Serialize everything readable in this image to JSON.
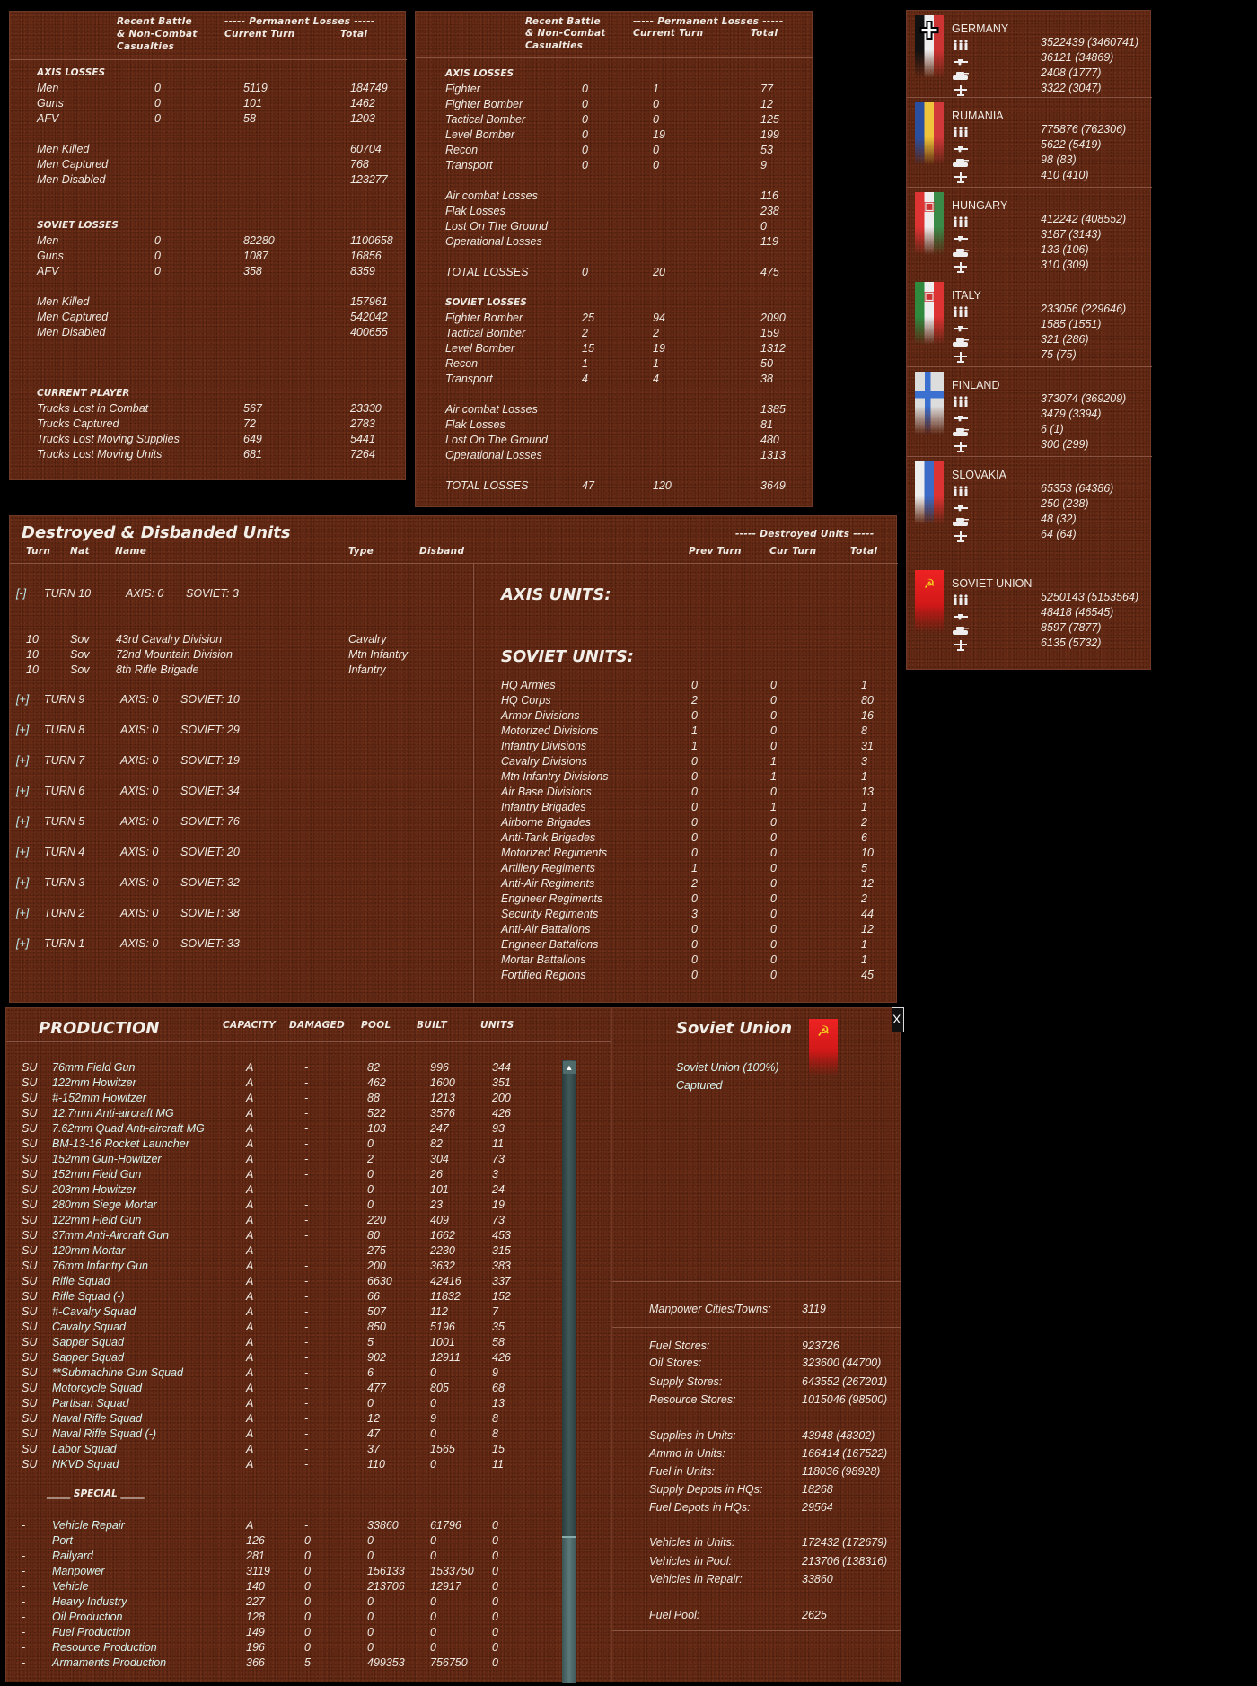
{
  "ground_losses": {
    "headers": {
      "recent": [
        "Recent Battle",
        "& Non-Combat",
        "Casualties"
      ],
      "permanent": "----- Permanent Losses -----",
      "current": "Current Turn",
      "total": "Total"
    },
    "sections": [
      {
        "title": "AXIS LOSSES",
        "groups": [
          [
            [
              "Men",
              "0",
              "5119",
              "184749"
            ],
            [
              "Guns",
              "0",
              "101",
              "1462"
            ],
            [
              "AFV",
              "0",
              "58",
              "1203"
            ]
          ],
          [
            [
              "Men Killed",
              "",
              "",
              "60704"
            ],
            [
              "Men Captured",
              "",
              "",
              "768"
            ],
            [
              "Men Disabled",
              "",
              "",
              "123277"
            ]
          ]
        ]
      },
      {
        "title": "SOVIET LOSSES",
        "groups": [
          [
            [
              "Men",
              "0",
              "82280",
              "1100658"
            ],
            [
              "Guns",
              "0",
              "1087",
              "16856"
            ],
            [
              "AFV",
              "0",
              "358",
              "8359"
            ]
          ],
          [
            [
              "Men Killed",
              "",
              "",
              "157961"
            ],
            [
              "Men Captured",
              "",
              "",
              "542042"
            ],
            [
              "Men Disabled",
              "",
              "",
              "400655"
            ]
          ]
        ]
      },
      {
        "title": "CURRENT PLAYER",
        "groups": [
          [
            [
              "Trucks Lost in Combat",
              "",
              "567",
              "23330"
            ],
            [
              "Trucks Captured",
              "",
              "72",
              "2783"
            ],
            [
              "Trucks Lost Moving Supplies",
              "",
              "649",
              "5441"
            ],
            [
              "Trucks Lost Moving Units",
              "",
              "681",
              "7264"
            ]
          ]
        ]
      }
    ]
  },
  "air_losses": {
    "headers": {
      "recent": [
        "Recent Battle",
        "& Non-Combat",
        "Casualties"
      ],
      "permanent": "----- Permanent Losses -----",
      "current": "Current Turn",
      "total": "Total"
    },
    "sections": [
      {
        "title": "AXIS LOSSES",
        "groups": [
          [
            [
              "Fighter",
              "0",
              "1",
              "77"
            ],
            [
              "Fighter Bomber",
              "0",
              "0",
              "12"
            ],
            [
              "Tactical Bomber",
              "0",
              "0",
              "125"
            ],
            [
              "Level Bomber",
              "0",
              "19",
              "199"
            ],
            [
              "Recon",
              "0",
              "0",
              "53"
            ],
            [
              "Transport",
              "0",
              "0",
              "9"
            ]
          ],
          [
            [
              "Air combat Losses",
              "",
              "",
              "116"
            ],
            [
              "Flak Losses",
              "",
              "",
              "238"
            ],
            [
              "Lost On The Ground",
              "",
              "",
              "0"
            ],
            [
              "Operational Losses",
              "",
              "",
              "119"
            ]
          ],
          [
            [
              "TOTAL LOSSES",
              "0",
              "20",
              "475"
            ]
          ]
        ]
      },
      {
        "title": "SOVIET LOSSES",
        "groups": [
          [
            [
              "Fighter Bomber",
              "25",
              "94",
              "2090"
            ],
            [
              "Tactical Bomber",
              "2",
              "2",
              "159"
            ],
            [
              "Level Bomber",
              "15",
              "19",
              "1312"
            ],
            [
              "Recon",
              "1",
              "1",
              "50"
            ],
            [
              "Transport",
              "4",
              "4",
              "38"
            ]
          ],
          [
            [
              "Air combat Losses",
              "",
              "",
              "1385"
            ],
            [
              "Flak Losses",
              "",
              "",
              "81"
            ],
            [
              "Lost On The Ground",
              "",
              "",
              "480"
            ],
            [
              "Operational Losses",
              "",
              "",
              "1313"
            ]
          ],
          [
            [
              "TOTAL LOSSES",
              "47",
              "120",
              "3649"
            ]
          ]
        ]
      }
    ]
  },
  "nations": [
    {
      "name": "GERMANY",
      "flag": "germany",
      "values": [
        "3522439 (3460741)",
        "36121 (34869)",
        "2408 (1777)",
        "3322 (3047)"
      ]
    },
    {
      "name": "RUMANIA",
      "flag": "rumania",
      "values": [
        "775876 (762306)",
        "5622 (5419)",
        "98 (83)",
        "410 (410)"
      ]
    },
    {
      "name": "HUNGARY",
      "flag": "hungary",
      "values": [
        "412242 (408552)",
        "3187 (3143)",
        "133 (106)",
        "310 (309)"
      ]
    },
    {
      "name": "ITALY",
      "flag": "italy",
      "values": [
        "233056 (229646)",
        "1585 (1551)",
        "321 (286)",
        "75 (75)"
      ]
    },
    {
      "name": "FINLAND",
      "flag": "finland",
      "values": [
        "373074 (369209)",
        "3479 (3394)",
        "6 (1)",
        "300 (299)"
      ]
    },
    {
      "name": "SLOVAKIA",
      "flag": "slovakia",
      "values": [
        "65353 (64386)",
        "250 (238)",
        "48 (32)",
        "64 (64)"
      ]
    },
    {
      "name": "SOVIET UNION",
      "flag": "soviet",
      "values": [
        "5250143 (5153564)",
        "48418 (46545)",
        "8597 (7877)",
        "6135 (5732)"
      ]
    }
  ],
  "destroyed": {
    "title": "Destroyed & Disbanded Units",
    "headers": {
      "turn": "Turn",
      "nat": "Nat",
      "name": "Name",
      "type": "Type",
      "disband": "Disband",
      "destroyed_units": "----- Destroyed Units -----",
      "prev_turn": "Prev Turn",
      "cur_turn": "Cur Turn",
      "total": "Total"
    },
    "turns": [
      {
        "toggle": "[-]",
        "label": "TURN 10",
        "axis": "AXIS: 0",
        "soviet": "SOVIET: 3",
        "units": [
          [
            "10",
            "Sov",
            "43rd Cavalry Division",
            "Cavalry"
          ],
          [
            "10",
            "Sov",
            "72nd Mountain Division",
            "Mtn Infantry"
          ],
          [
            "10",
            "Sov",
            "8th Rifle Brigade",
            "Infantry"
          ]
        ]
      },
      {
        "toggle": "[+]",
        "label": "TURN 9",
        "axis": "AXIS: 0",
        "soviet": "SOVIET: 10"
      },
      {
        "toggle": "[+]",
        "label": "TURN 8",
        "axis": "AXIS: 0",
        "soviet": "SOVIET: 29"
      },
      {
        "toggle": "[+]",
        "label": "TURN 7",
        "axis": "AXIS: 0",
        "soviet": "SOVIET: 19"
      },
      {
        "toggle": "[+]",
        "label": "TURN 6",
        "axis": "AXIS: 0",
        "soviet": "SOVIET: 34"
      },
      {
        "toggle": "[+]",
        "label": "TURN 5",
        "axis": "AXIS: 0",
        "soviet": "SOVIET: 76"
      },
      {
        "toggle": "[+]",
        "label": "TURN 4",
        "axis": "AXIS: 0",
        "soviet": "SOVIET: 20"
      },
      {
        "toggle": "[+]",
        "label": "TURN 3",
        "axis": "AXIS: 0",
        "soviet": "SOVIET: 32"
      },
      {
        "toggle": "[+]",
        "label": "TURN 2",
        "axis": "AXIS: 0",
        "soviet": "SOVIET: 38"
      },
      {
        "toggle": "[+]",
        "label": "TURN 1",
        "axis": "AXIS: 0",
        "soviet": "SOVIET: 33"
      }
    ],
    "axis_units_title": "AXIS UNITS:",
    "soviet_units_title": "SOVIET UNITS:",
    "soviet_units": [
      [
        "HQ Armies",
        "0",
        "0",
        "1"
      ],
      [
        "HQ Corps",
        "2",
        "0",
        "80"
      ],
      [
        "Armor Divisions",
        "0",
        "0",
        "16"
      ],
      [
        "Motorized Divisions",
        "1",
        "0",
        "8"
      ],
      [
        "Infantry Divisions",
        "1",
        "0",
        "31"
      ],
      [
        "Cavalry Divisions",
        "0",
        "1",
        "3"
      ],
      [
        "Mtn Infantry Divisions",
        "0",
        "1",
        "1"
      ],
      [
        "Air Base Divisions",
        "0",
        "0",
        "13"
      ],
      [
        "Infantry Brigades",
        "0",
        "1",
        "1"
      ],
      [
        "Airborne Brigades",
        "0",
        "0",
        "2"
      ],
      [
        "Anti-Tank Brigades",
        "0",
        "0",
        "6"
      ],
      [
        "Motorized Regiments",
        "0",
        "0",
        "10"
      ],
      [
        "Artillery Regiments",
        "1",
        "0",
        "5"
      ],
      [
        "Anti-Air Regiments",
        "2",
        "0",
        "12"
      ],
      [
        "Engineer Regiments",
        "0",
        "0",
        "2"
      ],
      [
        "Security Regiments",
        "3",
        "0",
        "44"
      ],
      [
        "Anti-Air Battalions",
        "0",
        "0",
        "12"
      ],
      [
        "Engineer Battalions",
        "0",
        "0",
        "1"
      ],
      [
        "Mortar Battalions",
        "0",
        "0",
        "1"
      ],
      [
        "Fortified Regions",
        "0",
        "0",
        "45"
      ]
    ]
  },
  "production": {
    "title": "PRODUCTION",
    "headers": [
      "CAPACITY",
      "DAMAGED",
      "POOL",
      "BUILT",
      "UNITS"
    ],
    "rows": [
      [
        "SU",
        "76mm Field Gun",
        "A",
        "-",
        "82",
        "996",
        "344"
      ],
      [
        "SU",
        "122mm Howitzer",
        "A",
        "-",
        "462",
        "1600",
        "351"
      ],
      [
        "SU",
        "#-152mm Howitzer",
        "A",
        "-",
        "88",
        "1213",
        "200"
      ],
      [
        "SU",
        "12.7mm Anti-aircraft MG",
        "A",
        "-",
        "522",
        "3576",
        "426"
      ],
      [
        "SU",
        "7.62mm Quad Anti-aircraft MG",
        "A",
        "-",
        "103",
        "247",
        "93"
      ],
      [
        "SU",
        "BM-13-16 Rocket Launcher",
        "A",
        "-",
        "0",
        "82",
        "11"
      ],
      [
        "SU",
        "152mm Gun-Howitzer",
        "A",
        "-",
        "2",
        "304",
        "73"
      ],
      [
        "SU",
        "152mm Field Gun",
        "A",
        "-",
        "0",
        "26",
        "3"
      ],
      [
        "SU",
        "203mm Howitzer",
        "A",
        "-",
        "0",
        "101",
        "24"
      ],
      [
        "SU",
        "280mm Siege Mortar",
        "A",
        "-",
        "0",
        "23",
        "19"
      ],
      [
        "SU",
        "122mm Field Gun",
        "A",
        "-",
        "220",
        "409",
        "73"
      ],
      [
        "SU",
        "37mm Anti-Aircraft Gun",
        "A",
        "-",
        "80",
        "1662",
        "453"
      ],
      [
        "SU",
        "120mm Mortar",
        "A",
        "-",
        "275",
        "2230",
        "315"
      ],
      [
        "SU",
        "76mm Infantry Gun",
        "A",
        "-",
        "200",
        "3632",
        "383"
      ],
      [
        "SU",
        "Rifle Squad",
        "A",
        "-",
        "6630",
        "42416",
        "337"
      ],
      [
        "SU",
        "Rifle Squad (-)",
        "A",
        "-",
        "66",
        "11832",
        "152"
      ],
      [
        "SU",
        "#-Cavalry Squad",
        "A",
        "-",
        "507",
        "112",
        "7"
      ],
      [
        "SU",
        "Cavalry Squad",
        "A",
        "-",
        "850",
        "5196",
        "35"
      ],
      [
        "SU",
        "Sapper Squad",
        "A",
        "-",
        "5",
        "1001",
        "58"
      ],
      [
        "SU",
        "Sapper Squad",
        "A",
        "-",
        "902",
        "12911",
        "426"
      ],
      [
        "SU",
        "**Submachine Gun Squad",
        "A",
        "-",
        "6",
        "0",
        "9"
      ],
      [
        "SU",
        "Motorcycle Squad",
        "A",
        "-",
        "477",
        "805",
        "68"
      ],
      [
        "SU",
        "Partisan Squad",
        "A",
        "-",
        "0",
        "0",
        "13"
      ],
      [
        "SU",
        "Naval Rifle Squad",
        "A",
        "-",
        "12",
        "9",
        "8"
      ],
      [
        "SU",
        "Naval Rifle Squad (-)",
        "A",
        "-",
        "47",
        "0",
        "8"
      ],
      [
        "SU",
        "Labor Squad",
        "A",
        "-",
        "37",
        "1565",
        "15"
      ],
      [
        "SU",
        "NKVD Squad",
        "A",
        "-",
        "110",
        "0",
        "11"
      ]
    ],
    "special_title": "_____ SPECIAL _____",
    "special_rows": [
      [
        "-",
        "Vehicle Repair",
        "A",
        "-",
        "33860",
        "61796",
        "0"
      ],
      [
        "-",
        "Port",
        "126",
        "0",
        "0",
        "0",
        "0"
      ],
      [
        "-",
        "Railyard",
        "281",
        "0",
        "0",
        "0",
        "0"
      ],
      [
        "-",
        "Manpower",
        "3119",
        "0",
        "156133",
        "1533750",
        "0"
      ],
      [
        "-",
        "Vehicle",
        "140",
        "0",
        "213706",
        "12917",
        "0"
      ],
      [
        "-",
        "Heavy Industry",
        "227",
        "0",
        "0",
        "0",
        "0"
      ],
      [
        "-",
        "Oil Production",
        "128",
        "0",
        "0",
        "0",
        "0"
      ],
      [
        "-",
        "Fuel Production",
        "149",
        "0",
        "0",
        "0",
        "0"
      ],
      [
        "-",
        "Resource Production",
        "196",
        "0",
        "0",
        "0",
        "0"
      ],
      [
        "-",
        "Armaments Production",
        "366",
        "5",
        "499353",
        "756750",
        "0"
      ]
    ]
  },
  "nation_summary": {
    "title": "Soviet Union",
    "flag": "soviet",
    "status": "Soviet Union  (100%)",
    "captured": "Captured",
    "close_label": "X",
    "groups": [
      [
        [
          "Manpower Cities/Towns:",
          "3119"
        ]
      ],
      [
        [
          "Fuel Stores:",
          "923726"
        ],
        [
          "Oil Stores:",
          "323600 (44700)"
        ],
        [
          "Supply Stores:",
          "643552 (267201)"
        ],
        [
          "Resource Stores:",
          "1015046 (98500)"
        ]
      ],
      [
        [
          "Supplies in Units:",
          "43948 (48302)"
        ],
        [
          "Ammo in Units:",
          "166414 (167522)"
        ],
        [
          "Fuel in Units:",
          "118036 (98928)"
        ],
        [
          "Supply Depots in HQs:",
          "18268"
        ],
        [
          "Fuel Depots in HQs:",
          "29564"
        ]
      ],
      [
        [
          "Vehicles in Units:",
          "172432 (172679)"
        ],
        [
          "Vehicles in Pool:",
          "213706 (138316)"
        ],
        [
          "Vehicles in Repair:",
          "33860"
        ]
      ],
      [
        [
          "Fuel Pool:",
          "2625"
        ]
      ]
    ]
  }
}
